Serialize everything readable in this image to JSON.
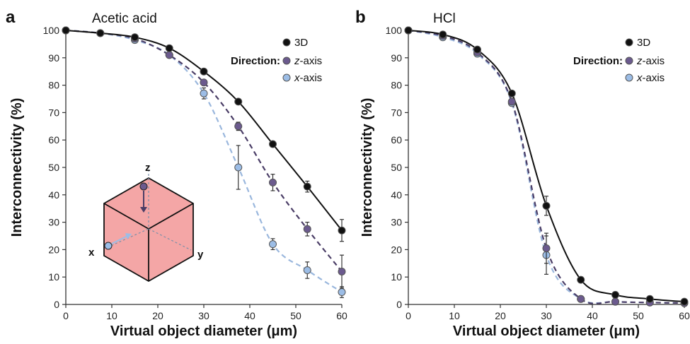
{
  "colors": {
    "3D": "#111111",
    "z-axis": "#6b5a8e",
    "x-axis": "#9cbde6",
    "z-axis-line": "#4a3d66",
    "x-axis-line": "#9ab7dd",
    "cube_face": "#f4a6a6"
  },
  "chart_data": [
    {
      "panel_label": "a",
      "title": "Acetic acid",
      "type": "scatter",
      "xlabel": "Virtual object diameter (μm)",
      "ylabel": "Interconnectivity (%)",
      "xlim": [
        0,
        60
      ],
      "ylim": [
        0,
        100
      ],
      "xticks": [
        "0",
        "10",
        "20",
        "30",
        "40",
        "50",
        "60"
      ],
      "yticks": [
        "0",
        "10",
        "20",
        "30",
        "40",
        "50",
        "60",
        "70",
        "80",
        "90",
        "100"
      ],
      "grid": false,
      "legend": {
        "placement": "top-right",
        "direction_label": "Direction:",
        "entries": [
          {
            "key": "3D",
            "prefix": "3D",
            "suffix": ""
          },
          {
            "key": "z-axis",
            "prefix": "z",
            "suffix": "-axis"
          },
          {
            "key": "x-axis",
            "prefix": "x",
            "suffix": "-axis"
          }
        ]
      },
      "series": [
        {
          "key": "3D",
          "fit": "solid",
          "x": [
            0,
            7.5,
            15,
            22.5,
            30,
            37.5,
            45,
            52.5,
            60
          ],
          "y": [
            100,
            99,
            97.5,
            93.5,
            85,
            74,
            58.5,
            43,
            27
          ],
          "err": [
            0,
            0,
            0,
            0,
            0,
            0,
            0,
            2,
            4
          ]
        },
        {
          "key": "z-axis",
          "fit": "dashed",
          "x": [
            0,
            7.5,
            15,
            22.5,
            30,
            37.5,
            45,
            52.5,
            60
          ],
          "y": [
            100,
            99,
            97,
            91,
            81,
            65,
            44.5,
            27.5,
            12
          ],
          "err": [
            0,
            0,
            0,
            0,
            0,
            1.5,
            3,
            2.5,
            6
          ]
        },
        {
          "key": "x-axis",
          "fit": "dashed",
          "x": [
            0,
            7.5,
            15,
            22.5,
            30,
            37.5,
            45,
            52.5,
            60
          ],
          "y": [
            100,
            99,
            96.5,
            91,
            77,
            50,
            22,
            12.5,
            4.5
          ],
          "err": [
            0,
            0,
            0,
            0,
            2,
            8,
            2,
            3,
            2
          ]
        }
      ],
      "inset": {
        "z_label": "z",
        "x_label": "x",
        "y_label": "y"
      }
    },
    {
      "panel_label": "b",
      "title": "HCl",
      "type": "scatter",
      "xlabel": "Virtual object diameter (μm)",
      "ylabel": "Interconnectivity (%)",
      "xlim": [
        0,
        60
      ],
      "ylim": [
        0,
        100
      ],
      "xticks": [
        "0",
        "10",
        "20",
        "30",
        "40",
        "50",
        "60"
      ],
      "yticks": [
        "0",
        "10",
        "20",
        "30",
        "40",
        "50",
        "60",
        "70",
        "80",
        "90",
        "100"
      ],
      "grid": false,
      "legend": {
        "placement": "top-right",
        "direction_label": "Direction:",
        "entries": [
          {
            "key": "3D",
            "prefix": "3D",
            "suffix": ""
          },
          {
            "key": "z-axis",
            "prefix": "z",
            "suffix": "-axis"
          },
          {
            "key": "x-axis",
            "prefix": "x",
            "suffix": "-axis"
          }
        ]
      },
      "series": [
        {
          "key": "3D",
          "fit": "solid",
          "x": [
            0,
            7.5,
            15,
            22.5,
            30,
            37.5,
            45,
            52.5,
            60
          ],
          "y": [
            100,
            98.5,
            93,
            77,
            36,
            9,
            3.5,
            2,
            1
          ],
          "err": [
            0,
            0,
            0,
            0,
            3.5,
            0,
            0,
            0,
            0
          ]
        },
        {
          "key": "z-axis",
          "fit": "dashed",
          "x": [
            0,
            7.5,
            15,
            22.5,
            30,
            37.5,
            45,
            52.5,
            60
          ],
          "y": [
            100,
            98,
            92,
            74,
            20.5,
            2,
            1,
            0.7,
            0.5
          ],
          "err": [
            0,
            0,
            0,
            0,
            5.5,
            0,
            0,
            0,
            0
          ]
        },
        {
          "key": "x-axis",
          "fit": "dashed",
          "x": [
            0,
            7.5,
            15,
            22.5,
            30,
            37.5,
            45,
            52.5,
            60
          ],
          "y": [
            100,
            97.5,
            91.5,
            73.5,
            18,
            2,
            1,
            0.7,
            0.5
          ],
          "err": [
            0,
            0,
            0,
            0,
            7,
            0,
            0,
            0,
            0
          ]
        }
      ]
    }
  ]
}
